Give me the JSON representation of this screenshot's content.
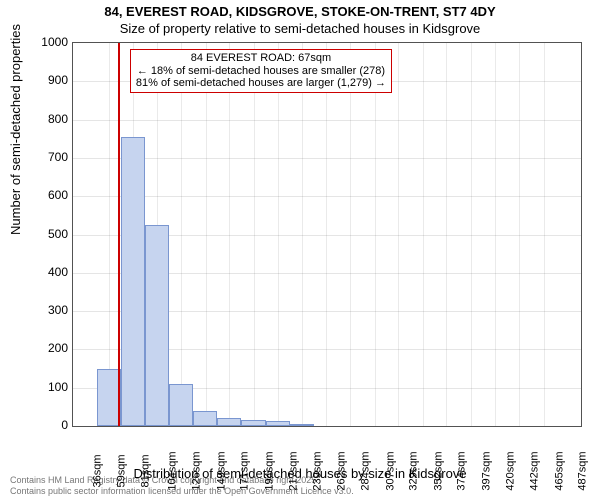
{
  "chart": {
    "type": "histogram",
    "title1": "84, EVEREST ROAD, KIDSGROVE, STOKE-ON-TRENT, ST7 4DY",
    "title2": "Size of property relative to semi-detached houses in Kidsgrove",
    "ylabel": "Number of semi-detached properties",
    "xlabel": "Distribution of semi-detached houses by size in Kidsgrove",
    "background_color": "#ffffff",
    "plot_border_color": "#525252",
    "bar_fill": "#c6d4ef",
    "bar_stroke": "#7a96d0",
    "marker_line_color": "#cc0000",
    "grid_color": "#525252",
    "ylim": [
      0,
      1000
    ],
    "ytick_step": 100,
    "yticks": [
      0,
      100,
      200,
      300,
      400,
      500,
      600,
      700,
      800,
      900,
      1000
    ],
    "xticks": [
      "36sqm",
      "59sqm",
      "81sqm",
      "104sqm",
      "126sqm",
      "149sqm",
      "171sqm",
      "194sqm",
      "217sqm",
      "239sqm",
      "262sqm",
      "284sqm",
      "307sqm",
      "329sqm",
      "352sqm",
      "374sqm",
      "397sqm",
      "420sqm",
      "442sqm",
      "465sqm",
      "487sqm"
    ],
    "x_min": 25,
    "x_max": 500,
    "bars": [
      {
        "x0": 25,
        "x1": 47.5,
        "count": 0
      },
      {
        "x0": 47.5,
        "x1": 70,
        "count": 150
      },
      {
        "x0": 70,
        "x1": 92.5,
        "count": 755
      },
      {
        "x0": 92.5,
        "x1": 115,
        "count": 525
      },
      {
        "x0": 115,
        "x1": 137.5,
        "count": 110
      },
      {
        "x0": 137.5,
        "x1": 160,
        "count": 38
      },
      {
        "x0": 160,
        "x1": 182.5,
        "count": 20
      },
      {
        "x0": 182.5,
        "x1": 205,
        "count": 15
      },
      {
        "x0": 205,
        "x1": 227.5,
        "count": 12
      },
      {
        "x0": 227.5,
        "x1": 250,
        "count": 2
      }
    ],
    "marker_sqm": 67,
    "annotation": {
      "line1": "84 EVEREST ROAD: 67sqm",
      "line2": "← 18% of semi-detached houses are smaller (278)",
      "line3": "81% of semi-detached houses are larger (1,279) →"
    },
    "attribution1": "Contains HM Land Registry data © Crown copyright and database right 2025.",
    "attribution2": "Contains public sector information licensed under the Open Government Licence v3.0."
  }
}
